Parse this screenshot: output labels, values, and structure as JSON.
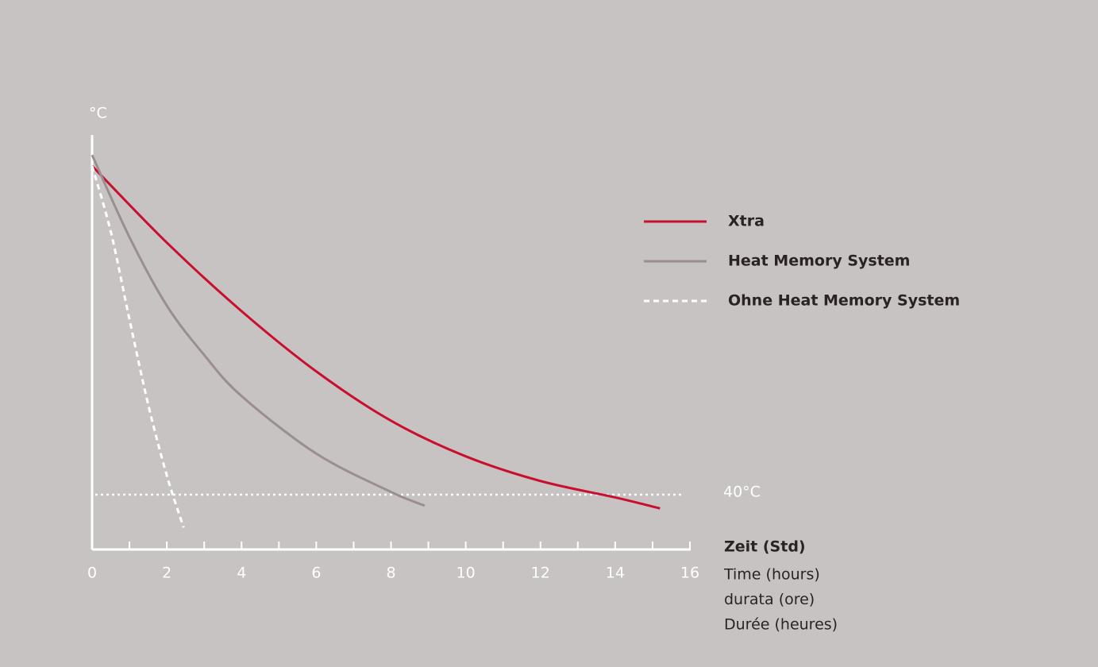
{
  "chart_data": {
    "type": "line",
    "ylabel": "°C",
    "xlabel": "Zeit (Std)",
    "xlabel_lines": [
      "Time (hours)",
      "durata (ore)",
      "Durée (heures)"
    ],
    "xlim": [
      0,
      16
    ],
    "xticks": [
      0,
      2,
      4,
      6,
      8,
      10,
      12,
      14,
      16
    ],
    "xminor_ticks": [
      1,
      3,
      5,
      7,
      9,
      11,
      13,
      15
    ],
    "ylim": [
      30,
      105
    ],
    "reference_line": {
      "value": 40,
      "label": "40°C",
      "color": "#ffffff"
    },
    "legend": "upper right",
    "series": [
      {
        "name": "Xtra",
        "color": "#c8102e",
        "dashed": false,
        "x": [
          0,
          2,
          4,
          6,
          8,
          10,
          12,
          14,
          15.2
        ],
        "values": [
          100,
          86,
          73.5,
          62.5,
          53.5,
          47,
          42.5,
          39.5,
          37.5
        ]
      },
      {
        "name": "Heat Memory System",
        "color": "#9a8e8e",
        "dashed": false,
        "x": [
          0,
          1,
          2,
          3,
          4,
          6,
          8,
          8.9
        ],
        "values": [
          102,
          87,
          74.5,
          65.5,
          58,
          47.5,
          40.5,
          38
        ]
      },
      {
        "name": "Ohne Heat Memory System",
        "color": "#ffffff",
        "dashed": true,
        "x": [
          0,
          0.5,
          1,
          1.5,
          2,
          2.45
        ],
        "values": [
          100,
          88,
          72,
          56.5,
          43.5,
          34
        ]
      }
    ]
  }
}
